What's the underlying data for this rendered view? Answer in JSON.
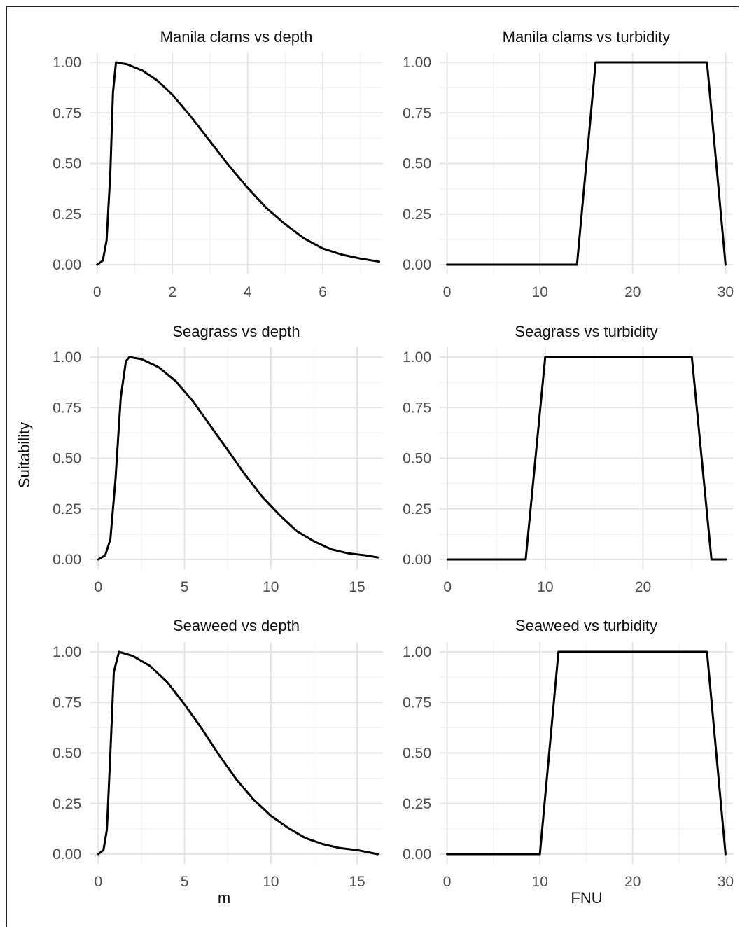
{
  "figure": {
    "y_axis_title": "Suitability",
    "x_axis_title_left": "m",
    "x_axis_title_right": "FNU",
    "colors": {
      "line": "#000000",
      "grid_major": "#e3e3e3",
      "grid_minor": "#f2f2f2",
      "tick_label": "#4d4d4d"
    }
  },
  "chart_data": [
    {
      "type": "line",
      "title": "Manila clams vs depth",
      "xlabel": "",
      "ylabel": "Suitability",
      "xlim": [
        -0.2,
        7.6
      ],
      "ylim": [
        0,
        1
      ],
      "xticks": [
        "0",
        "2",
        "4",
        "6"
      ],
      "xtick_values": [
        0,
        2,
        4,
        6
      ],
      "yticks": [
        "0.00",
        "0.25",
        "0.50",
        "0.75",
        "1.00"
      ],
      "series": [
        {
          "x": [
            0,
            0.15,
            0.25,
            0.35,
            0.42,
            0.5,
            0.8,
            1.2,
            1.6,
            2.0,
            2.5,
            3.0,
            3.5,
            4.0,
            4.5,
            5.0,
            5.5,
            6.0,
            6.5,
            7.0,
            7.5
          ],
          "y": [
            0,
            0.02,
            0.12,
            0.45,
            0.85,
            1.0,
            0.99,
            0.96,
            0.91,
            0.84,
            0.73,
            0.61,
            0.49,
            0.38,
            0.28,
            0.2,
            0.13,
            0.08,
            0.05,
            0.03,
            0.015
          ]
        }
      ]
    },
    {
      "type": "line",
      "title": "Manila clams vs turbidity",
      "xlabel": "FNU",
      "ylabel": "",
      "xlim": [
        -0.8,
        30.8
      ],
      "ylim": [
        0,
        1
      ],
      "xticks": [
        "0",
        "10",
        "20",
        "30"
      ],
      "xtick_values": [
        0,
        10,
        20,
        30
      ],
      "yticks": [
        "0.00",
        "0.25",
        "0.50",
        "0.75",
        "1.00"
      ],
      "series": [
        {
          "x": [
            0,
            14,
            16,
            28,
            30
          ],
          "y": [
            0,
            0,
            1,
            1,
            0
          ]
        }
      ]
    },
    {
      "type": "line",
      "title": "Seagrass vs depth",
      "xlabel": "",
      "ylabel": "Suitability",
      "xlim": [
        -0.5,
        16.5
      ],
      "ylim": [
        0,
        1
      ],
      "xticks": [
        "0",
        "5",
        "10",
        "15"
      ],
      "xtick_values": [
        0,
        5,
        10,
        15
      ],
      "yticks": [
        "0.00",
        "0.25",
        "0.50",
        "0.75",
        "1.00"
      ],
      "series": [
        {
          "x": [
            0,
            0.4,
            0.7,
            1.0,
            1.3,
            1.6,
            1.8,
            2.5,
            3.5,
            4.5,
            5.5,
            6.5,
            7.5,
            8.5,
            9.5,
            10.5,
            11.5,
            12.5,
            13.5,
            14.5,
            15.5,
            16.2
          ],
          "y": [
            0,
            0.02,
            0.1,
            0.4,
            0.8,
            0.98,
            1.0,
            0.99,
            0.95,
            0.88,
            0.78,
            0.66,
            0.54,
            0.42,
            0.31,
            0.22,
            0.14,
            0.09,
            0.05,
            0.03,
            0.02,
            0.01
          ]
        }
      ]
    },
    {
      "type": "line",
      "title": "Seagrass vs turbidity",
      "xlabel": "FNU",
      "ylabel": "",
      "xlim": [
        -0.8,
        29.2
      ],
      "ylim": [
        0,
        1
      ],
      "xticks": [
        "0",
        "10",
        "20"
      ],
      "xtick_values": [
        0,
        10,
        20
      ],
      "yticks": [
        "0.00",
        "0.25",
        "0.50",
        "0.75",
        "1.00"
      ],
      "series": [
        {
          "x": [
            0,
            8,
            10,
            25,
            27,
            28.5
          ],
          "y": [
            0,
            0,
            1,
            1,
            0,
            0
          ]
        }
      ]
    },
    {
      "type": "line",
      "title": "Seaweed vs depth",
      "xlabel": "m",
      "ylabel": "Suitability",
      "xlim": [
        -0.5,
        16.5
      ],
      "ylim": [
        0,
        1
      ],
      "xticks": [
        "0",
        "5",
        "10",
        "15"
      ],
      "xtick_values": [
        0,
        5,
        10,
        15
      ],
      "yticks": [
        "0.00",
        "0.25",
        "0.50",
        "0.75",
        "1.00"
      ],
      "series": [
        {
          "x": [
            0,
            0.3,
            0.5,
            0.7,
            0.9,
            1.2,
            2.0,
            3.0,
            4.0,
            5.0,
            6.0,
            7.0,
            8.0,
            9.0,
            10.0,
            11.0,
            12.0,
            13.0,
            14.0,
            15.0,
            16.2
          ],
          "y": [
            0,
            0.02,
            0.12,
            0.5,
            0.9,
            1.0,
            0.98,
            0.93,
            0.85,
            0.74,
            0.62,
            0.49,
            0.37,
            0.27,
            0.19,
            0.13,
            0.08,
            0.05,
            0.03,
            0.02,
            0
          ]
        }
      ]
    },
    {
      "type": "line",
      "title": "Seaweed vs turbidity",
      "xlabel": "FNU",
      "ylabel": "",
      "xlim": [
        -0.8,
        30.8
      ],
      "ylim": [
        0,
        1
      ],
      "xticks": [
        "0",
        "10",
        "20",
        "30"
      ],
      "xtick_values": [
        0,
        10,
        20,
        30
      ],
      "yticks": [
        "0.00",
        "0.25",
        "0.50",
        "0.75",
        "1.00"
      ],
      "series": [
        {
          "x": [
            0,
            10,
            12,
            28,
            30
          ],
          "y": [
            0,
            0,
            1,
            1,
            0
          ]
        }
      ]
    }
  ]
}
